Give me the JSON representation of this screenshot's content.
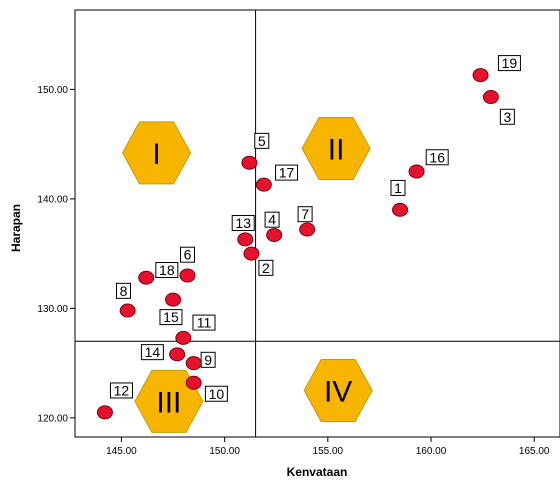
{
  "chart_data": {
    "type": "scatter",
    "title": "",
    "xlabel": "Kenvataan",
    "ylabel": "Harapan",
    "xlim": [
      142.75,
      166.25
    ],
    "ylim": [
      118.25,
      157.25
    ],
    "x_ticks": [
      "145.00",
      "150.00",
      "155.00",
      "160.00",
      "165.00"
    ],
    "y_ticks": [
      "120.00",
      "130.00",
      "140.00",
      "150.00"
    ],
    "x_tick_values": [
      145,
      150,
      155,
      160,
      165
    ],
    "y_tick_values": [
      120,
      130,
      140,
      150
    ],
    "grid": false,
    "colors": {
      "point_fill": "#e8112d",
      "point_stroke": "#7a0010",
      "quadrant_fill": "#f7b500",
      "quadrant_stroke": "#c99a00"
    },
    "divider_lines": {
      "x": 151.5,
      "y": 127.0
    },
    "quadrants": [
      {
        "label": "I",
        "x": 146.7,
        "y": 144.2
      },
      {
        "label": "II",
        "x": 155.4,
        "y": 144.6
      },
      {
        "label": "III",
        "x": 147.3,
        "y": 121.5
      },
      {
        "label": "IV",
        "x": 155.5,
        "y": 122.5
      }
    ],
    "points": [
      {
        "label": "1",
        "x": 158.5,
        "y": 139.0,
        "lx": 158.4,
        "ly": 141.0
      },
      {
        "label": "2",
        "x": 151.3,
        "y": 135.0,
        "lx": 152.0,
        "ly": 133.7
      },
      {
        "label": "3",
        "x": 162.9,
        "y": 149.3,
        "lx": 163.7,
        "ly": 147.5
      },
      {
        "label": "4",
        "x": 152.4,
        "y": 136.7,
        "lx": 152.3,
        "ly": 138.1
      },
      {
        "label": "5",
        "x": 151.2,
        "y": 143.3,
        "lx": 151.8,
        "ly": 145.3
      },
      {
        "label": "6",
        "x": 148.2,
        "y": 133.0,
        "lx": 148.2,
        "ly": 134.9
      },
      {
        "label": "7",
        "x": 154.0,
        "y": 137.2,
        "lx": 153.9,
        "ly": 138.6
      },
      {
        "label": "8",
        "x": 145.3,
        "y": 129.8,
        "lx": 145.1,
        "ly": 131.6
      },
      {
        "label": "9",
        "x": 148.5,
        "y": 125.0,
        "lx": 149.2,
        "ly": 125.3
      },
      {
        "label": "10",
        "x": 148.5,
        "y": 123.2,
        "lx": 149.6,
        "ly": 122.2
      },
      {
        "label": "11",
        "x": 148.0,
        "y": 127.3,
        "lx": 149.0,
        "ly": 128.7
      },
      {
        "label": "12",
        "x": 144.2,
        "y": 120.5,
        "lx": 145.0,
        "ly": 122.5
      },
      {
        "label": "13",
        "x": 151.0,
        "y": 136.3,
        "lx": 150.9,
        "ly": 137.8
      },
      {
        "label": "14",
        "x": 147.7,
        "y": 125.8,
        "lx": 146.5,
        "ly": 126.0
      },
      {
        "label": "15",
        "x": 147.5,
        "y": 130.8,
        "lx": 147.4,
        "ly": 129.2
      },
      {
        "label": "16",
        "x": 159.3,
        "y": 142.5,
        "lx": 160.3,
        "ly": 143.8
      },
      {
        "label": "17",
        "x": 151.9,
        "y": 141.3,
        "lx": 153.0,
        "ly": 142.4
      },
      {
        "label": "18",
        "x": 146.2,
        "y": 132.8,
        "lx": 147.2,
        "ly": 133.5
      },
      {
        "label": "19",
        "x": 162.4,
        "y": 151.3,
        "lx": 163.8,
        "ly": 152.4
      }
    ]
  }
}
